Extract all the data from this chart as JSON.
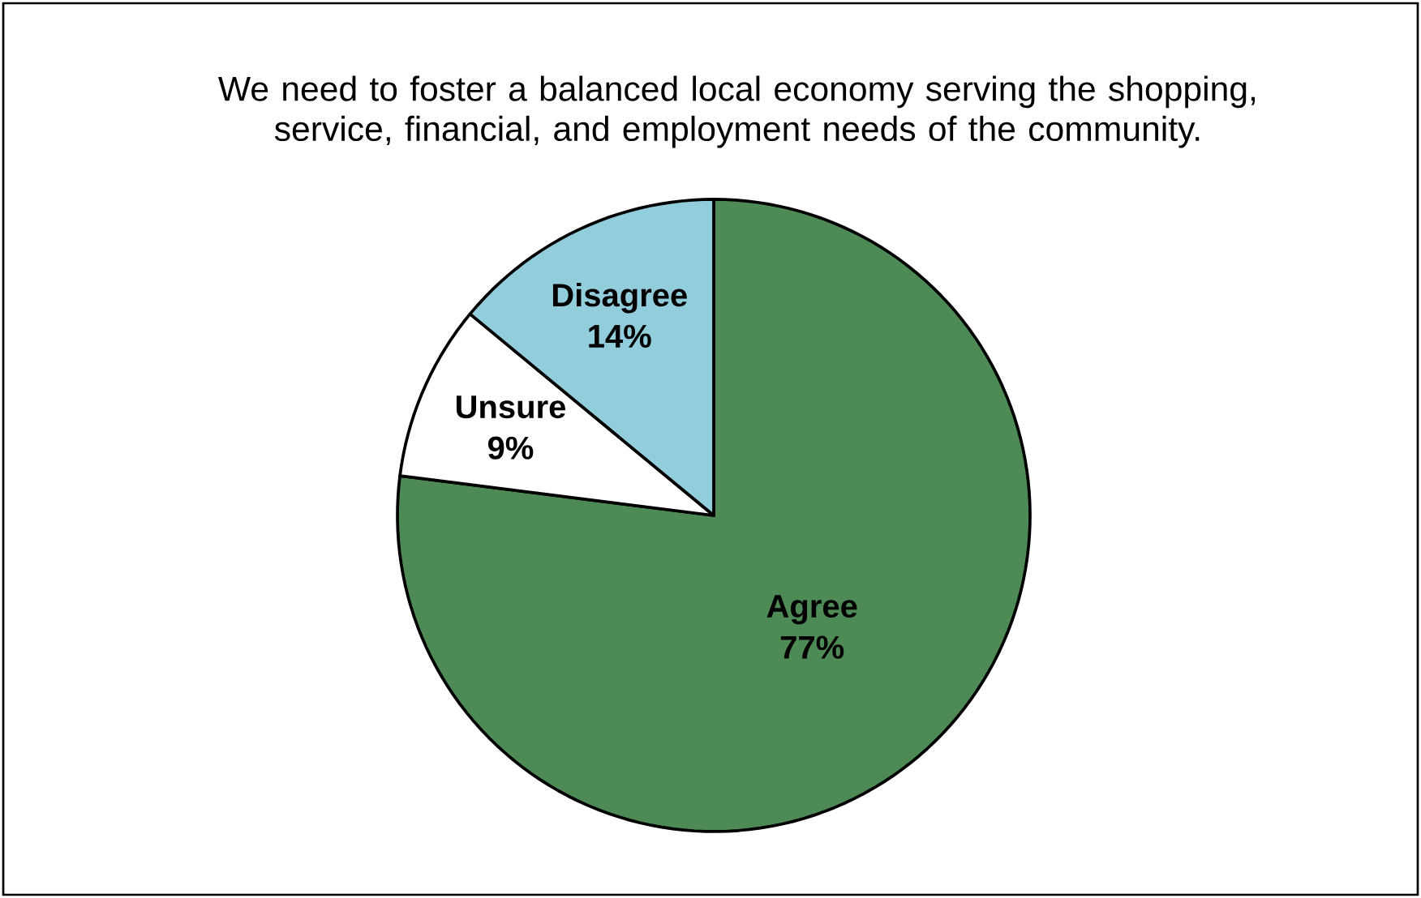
{
  "chart_data": {
    "type": "pie",
    "title": "We need to foster a balanced local economy serving the shopping, service, financial, and employment needs of the community.",
    "categories": [
      "Agree",
      "Unsure",
      "Disagree"
    ],
    "values": [
      77,
      9,
      14
    ],
    "colors": [
      "#4e8a55",
      "#ffffff",
      "#92cddc"
    ],
    "value_labels": [
      "77%",
      "9%",
      "14%"
    ]
  }
}
